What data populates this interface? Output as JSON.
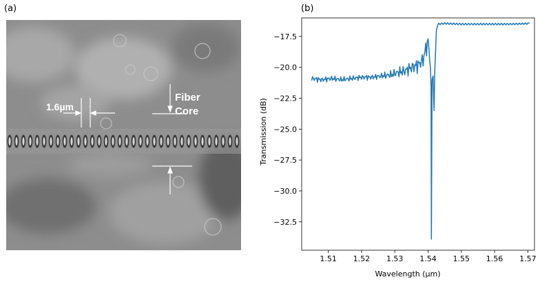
{
  "panels": {
    "a_label": "(a)",
    "b_label": "(b)"
  },
  "micrograph": {
    "gap_label": "1.6µm",
    "fiber_label_line1": "Fiber",
    "fiber_label_line2": "Core"
  },
  "chart_data": {
    "type": "line",
    "title": "",
    "xlabel": "Wavelength (µm)",
    "ylabel": "Transmission (dB)",
    "xlim": [
      1.502,
      1.572
    ],
    "ylim": [
      -34.8,
      -16.0
    ],
    "xticks": [
      1.51,
      1.52,
      1.53,
      1.54,
      1.55,
      1.56,
      1.57
    ],
    "xtick_labels": [
      "1.51",
      "1.52",
      "1.53",
      "1.54",
      "1.55",
      "1.56",
      "1.57"
    ],
    "yticks": [
      -17.5,
      -20.0,
      -22.5,
      -25.0,
      -27.5,
      -30.0,
      -32.5
    ],
    "ytick_labels": [
      "−17.5",
      "−20.0",
      "−22.5",
      "−25.0",
      "−27.5",
      "−30.0",
      "−32.5"
    ],
    "grid": false,
    "color": "#1f77b4",
    "series": [
      {
        "x": [
          1.505,
          1.508,
          1.511,
          1.514,
          1.517,
          1.52,
          1.523,
          1.526,
          1.529,
          1.531,
          1.533,
          1.535,
          1.537,
          1.5385,
          1.5393,
          1.54,
          1.5403,
          1.5405,
          1.5407,
          1.5409,
          1.541,
          1.5412,
          1.5415,
          1.5418,
          1.542,
          1.5425,
          1.543,
          1.545,
          1.55,
          1.555,
          1.56,
          1.565,
          1.5705
        ],
        "y": [
          -20.9,
          -21.0,
          -20.9,
          -21.0,
          -20.9,
          -20.8,
          -20.8,
          -20.7,
          -20.6,
          -20.4,
          -20.3,
          -20.0,
          -19.8,
          -19.4,
          -18.5,
          -17.9,
          -18.8,
          -19.5,
          -20.0,
          -21.5,
          -33.9,
          -21.0,
          -20.7,
          -23.5,
          -20.5,
          -17.0,
          -16.5,
          -16.45,
          -16.5,
          -16.5,
          -16.5,
          -16.5,
          -16.45
        ]
      }
    ]
  }
}
